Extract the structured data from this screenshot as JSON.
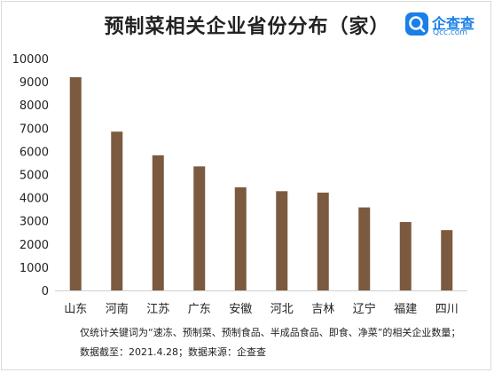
{
  "header": {
    "title": "预制菜相关企业省份分布（家）"
  },
  "logo": {
    "name": "企查查",
    "sub": "Qcc.com",
    "icon": "qcc-logo-icon",
    "color": "#1a7fe6"
  },
  "notes": {
    "line1": "仅统计关键词为“速冻、预制菜、预制食品、半成品食品、即食、净菜”的相关企业数量；",
    "line2": "数据截至：2021.4.28；数据来源：企查查"
  },
  "chart_data": {
    "type": "bar",
    "title": "预制菜相关企业省份分布（家）",
    "xlabel": "",
    "ylabel": "",
    "categories": [
      "山东",
      "河南",
      "江苏",
      "广东",
      "安徽",
      "河北",
      "吉林",
      "辽宁",
      "福建",
      "四川"
    ],
    "values": [
      9200,
      6850,
      5830,
      5350,
      4450,
      4280,
      4220,
      3580,
      2950,
      2600
    ],
    "ylim": [
      0,
      10000
    ],
    "yticks": [
      "0",
      "1000",
      "2000",
      "3000",
      "4000",
      "5000",
      "6000",
      "7000",
      "8000",
      "9000",
      "10000"
    ],
    "bar_color": "#7b5a3f",
    "grid": false,
    "legend": "none"
  }
}
